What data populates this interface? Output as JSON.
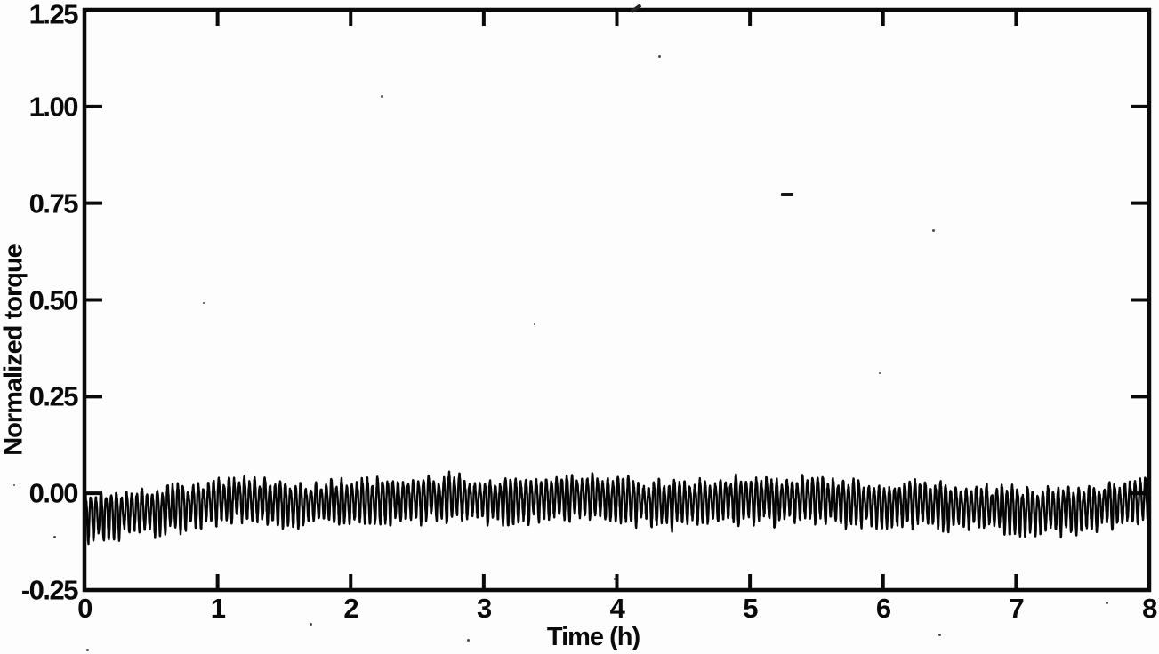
{
  "chart_data": {
    "type": "line",
    "title": "",
    "xlabel": "Time (h)",
    "ylabel": "Normalized torque",
    "xlim": [
      0,
      8
    ],
    "ylim": [
      -0.25,
      1.25
    ],
    "xticks": [
      0,
      1,
      2,
      3,
      4,
      5,
      6,
      7,
      8
    ],
    "xtick_labels": [
      "0",
      "1",
      "2",
      "3",
      "4",
      "5",
      "6",
      "7",
      "8"
    ],
    "yticks": [
      -0.25,
      0.0,
      0.25,
      0.5,
      0.75,
      1.0,
      1.25
    ],
    "ytick_labels": [
      "-0.25",
      "0.00",
      "0.25",
      "0.50",
      "0.75",
      "1.00",
      "1.25"
    ],
    "grid": false,
    "frame": "box",
    "tick_direction": "in",
    "background": "#fdfdfd",
    "line_color": "#0a0a0a",
    "series": [
      {
        "name": "normalized torque",
        "description": "Dense high-frequency oscillation (about 26 cycles per hour) around a slowly drifting mean slightly below zero; band spans roughly -0.11 to +0.05 over the full 0-8 h record.",
        "oscillation_cycles_per_hour": 26,
        "oscillation_amplitude": 0.05,
        "mean_profile": {
          "t": [
            0.0,
            0.2,
            0.45,
            0.7,
            0.95,
            1.15,
            1.35,
            1.6,
            1.85,
            2.1,
            2.35,
            2.6,
            2.8,
            3.0,
            3.2,
            3.45,
            3.7,
            3.95,
            4.2,
            4.45,
            4.7,
            4.95,
            5.2,
            5.45,
            5.7,
            5.95,
            6.2,
            6.45,
            6.7,
            6.95,
            7.2,
            7.45,
            7.7,
            7.85,
            8.0
          ],
          "mean": [
            -0.057,
            -0.052,
            -0.045,
            -0.035,
            -0.022,
            -0.012,
            -0.02,
            -0.028,
            -0.022,
            -0.02,
            -0.015,
            -0.01,
            -0.008,
            -0.015,
            -0.018,
            -0.012,
            -0.006,
            -0.012,
            -0.022,
            -0.025,
            -0.018,
            -0.01,
            -0.018,
            -0.012,
            -0.02,
            -0.028,
            -0.022,
            -0.03,
            -0.035,
            -0.038,
            -0.045,
            -0.038,
            -0.028,
            -0.022,
            -0.018
          ]
        }
      }
    ]
  }
}
